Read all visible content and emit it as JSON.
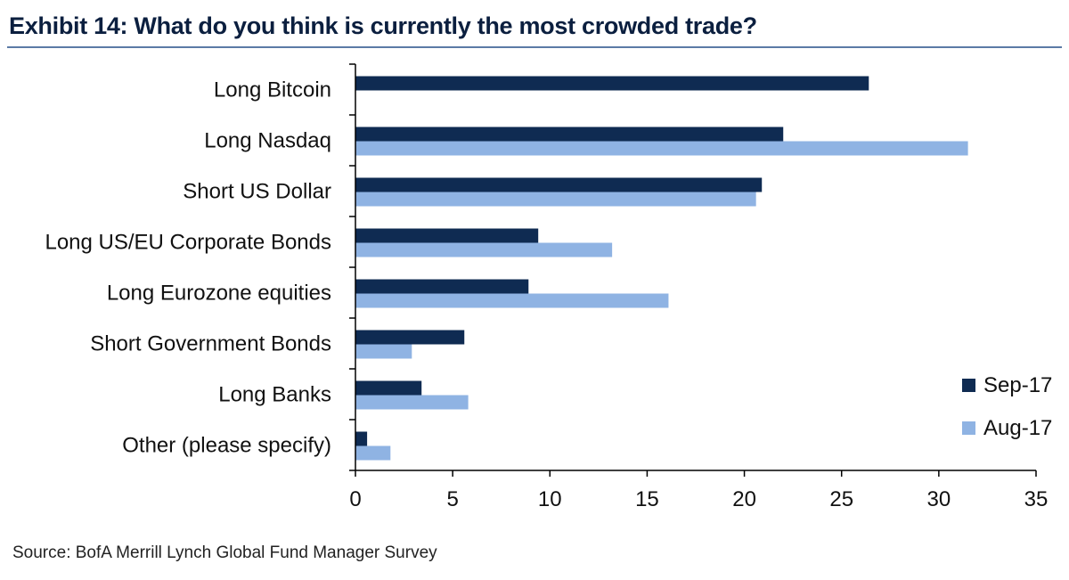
{
  "header": {
    "title": "Exhibit 14: What do you think is currently the most crowded trade?"
  },
  "footer": {
    "source": "Source: BofA Merrill Lynch Global Fund Manager Survey"
  },
  "colors": {
    "sep17": "#0f2b52",
    "aug17": "#8fb3e3",
    "title": "#0b1f3f",
    "rule": "#5b7aa6"
  },
  "chart_data": {
    "type": "bar",
    "orientation": "horizontal",
    "title": "Exhibit 14: What do you think is currently the most crowded trade?",
    "categories": [
      "Long Bitcoin",
      "Long Nasdaq",
      "Short US Dollar",
      "Long US/EU Corporate Bonds",
      "Long Eurozone equities",
      "Short Government Bonds",
      "Long Banks",
      "Other (please specify)"
    ],
    "series": [
      {
        "name": "Sep-17",
        "values": [
          26.4,
          22.0,
          20.9,
          9.4,
          8.9,
          5.6,
          3.4,
          0.6
        ]
      },
      {
        "name": "Aug-17",
        "values": [
          0,
          31.5,
          20.6,
          13.2,
          16.1,
          2.9,
          5.8,
          1.8
        ]
      }
    ],
    "xlim": [
      0,
      35
    ],
    "xticks": [
      "0",
      "5",
      "10",
      "15",
      "20",
      "25",
      "30",
      "35"
    ],
    "grid": false,
    "legend": "bottom-right"
  }
}
